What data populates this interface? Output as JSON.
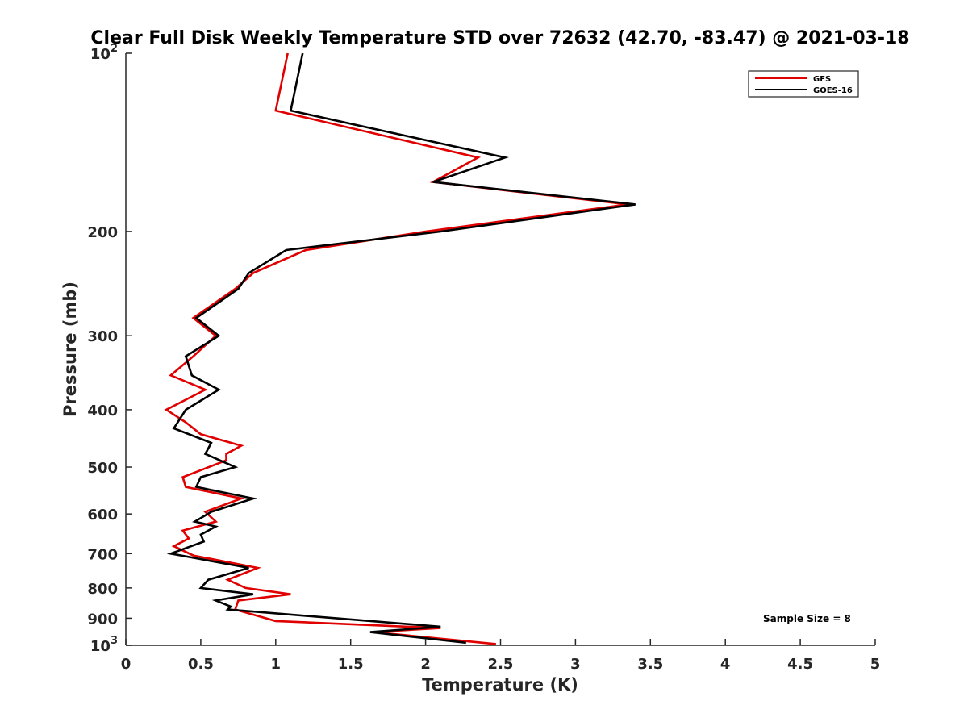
{
  "chart_data": {
    "type": "line",
    "title": "Clear Full Disk Weekly Temperature STD over 72632 (42.70, -83.47) @ 2021-03-18",
    "xlabel": "Temperature (K)",
    "ylabel": "Pressure (mb)",
    "xlim": [
      0,
      5
    ],
    "ylim": [
      100,
      1000
    ],
    "y_scale": "log",
    "y_reversed": true,
    "grid": false,
    "legend_position": "top-right",
    "xticks": [
      0,
      0.5,
      1,
      1.5,
      2,
      2.5,
      3,
      3.5,
      4,
      4.5,
      5
    ],
    "xtick_labels": [
      "0",
      "0.5",
      "1",
      "1.5",
      "2",
      "2.5",
      "3",
      "3.5",
      "4",
      "4.5",
      "5"
    ],
    "yticks": [
      100,
      200,
      300,
      400,
      500,
      600,
      700,
      800,
      900,
      1000
    ],
    "ytick_labels": [
      {
        "base": "10",
        "exp": "2"
      },
      {
        "base": "200",
        "exp": ""
      },
      {
        "base": "300",
        "exp": ""
      },
      {
        "base": "400",
        "exp": ""
      },
      {
        "base": "500",
        "exp": ""
      },
      {
        "base": "600",
        "exp": ""
      },
      {
        "base": "700",
        "exp": ""
      },
      {
        "base": "800",
        "exp": ""
      },
      {
        "base": "900",
        "exp": ""
      },
      {
        "base": "10",
        "exp": "3"
      }
    ],
    "annotation": "Sample Size = 8",
    "series": [
      {
        "name": "GFS",
        "color": "#e00000",
        "points": [
          [
            1.08,
            100
          ],
          [
            1.0,
            125
          ],
          [
            2.35,
            150
          ],
          [
            2.05,
            165
          ],
          [
            3.35,
            180
          ],
          [
            2.0,
            200
          ],
          [
            1.2,
            215
          ],
          [
            0.85,
            235
          ],
          [
            0.73,
            250
          ],
          [
            0.45,
            280
          ],
          [
            0.6,
            300
          ],
          [
            0.45,
            325
          ],
          [
            0.3,
            350
          ],
          [
            0.53,
            370
          ],
          [
            0.27,
            400
          ],
          [
            0.4,
            420
          ],
          [
            0.5,
            440
          ],
          [
            0.77,
            460
          ],
          [
            0.67,
            475
          ],
          [
            0.67,
            487
          ],
          [
            0.38,
            520
          ],
          [
            0.4,
            540
          ],
          [
            0.77,
            565
          ],
          [
            0.53,
            595
          ],
          [
            0.6,
            618
          ],
          [
            0.38,
            640
          ],
          [
            0.42,
            660
          ],
          [
            0.32,
            680
          ],
          [
            0.45,
            705
          ],
          [
            0.88,
            740
          ],
          [
            0.68,
            775
          ],
          [
            0.8,
            800
          ],
          [
            1.1,
            820
          ],
          [
            0.75,
            840
          ],
          [
            0.73,
            870
          ],
          [
            1.0,
            910
          ],
          [
            2.1,
            935
          ],
          [
            1.65,
            950
          ],
          [
            2.47,
            995
          ]
        ]
      },
      {
        "name": "GOES-16",
        "color": "#000000",
        "points": [
          [
            1.18,
            100
          ],
          [
            1.1,
            125
          ],
          [
            2.53,
            150
          ],
          [
            2.05,
            165
          ],
          [
            3.4,
            180
          ],
          [
            2.1,
            200
          ],
          [
            1.07,
            215
          ],
          [
            0.82,
            235
          ],
          [
            0.75,
            250
          ],
          [
            0.47,
            280
          ],
          [
            0.62,
            300
          ],
          [
            0.4,
            325
          ],
          [
            0.44,
            350
          ],
          [
            0.62,
            370
          ],
          [
            0.4,
            400
          ],
          [
            0.32,
            430
          ],
          [
            0.57,
            455
          ],
          [
            0.53,
            475
          ],
          [
            0.73,
            500
          ],
          [
            0.5,
            520
          ],
          [
            0.47,
            540
          ],
          [
            0.85,
            565
          ],
          [
            0.57,
            595
          ],
          [
            0.46,
            618
          ],
          [
            0.6,
            630
          ],
          [
            0.5,
            650
          ],
          [
            0.52,
            668
          ],
          [
            0.3,
            700
          ],
          [
            0.82,
            740
          ],
          [
            0.55,
            775
          ],
          [
            0.5,
            800
          ],
          [
            0.85,
            820
          ],
          [
            0.6,
            840
          ],
          [
            0.7,
            860
          ],
          [
            0.68,
            870
          ],
          [
            2.1,
            930
          ],
          [
            1.63,
            950
          ],
          [
            2.27,
            990
          ]
        ]
      }
    ]
  }
}
